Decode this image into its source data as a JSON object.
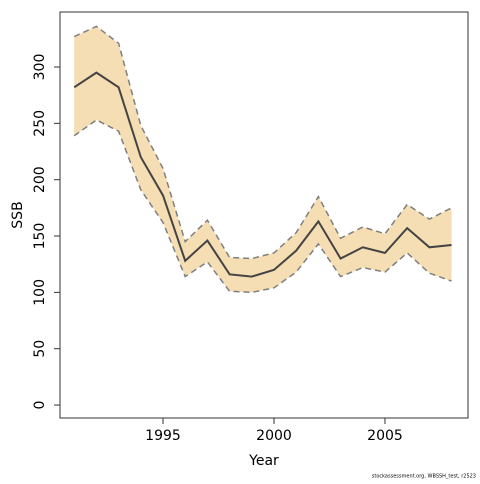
{
  "chart_data": {
    "type": "band-line",
    "x_label": "Year",
    "y_label": "SSB",
    "footnote": "stockassessment.org, WBSSH_test, r2523",
    "x": [
      1991,
      1992,
      1993,
      1994,
      1995,
      1996,
      1997,
      1998,
      1999,
      2000,
      2001,
      2002,
      2003,
      2004,
      2005,
      2006,
      2007,
      2008
    ],
    "values": [
      282,
      295,
      282,
      220,
      186,
      128,
      146,
      116,
      114,
      120,
      137,
      163,
      130,
      140,
      135,
      157,
      140,
      142
    ],
    "upper": [
      327,
      336,
      321,
      248,
      210,
      145,
      164,
      131,
      130,
      135,
      153,
      185,
      148,
      158,
      152,
      178,
      165,
      175
    ],
    "lower": [
      239,
      253,
      243,
      191,
      162,
      114,
      127,
      101,
      100,
      104,
      118,
      143,
      114,
      122,
      118,
      135,
      117,
      110
    ],
    "line_color": "#444444",
    "band_color": "#f5deb3",
    "bound_color": "#7f7f7f",
    "xlim": [
      1990.36,
      2008.74
    ],
    "xticks": [
      1995,
      2000,
      2005
    ],
    "ylim": [
      -11.5,
      348.8
    ],
    "yticks": [
      0,
      50,
      100,
      150,
      200,
      250,
      300
    ]
  }
}
